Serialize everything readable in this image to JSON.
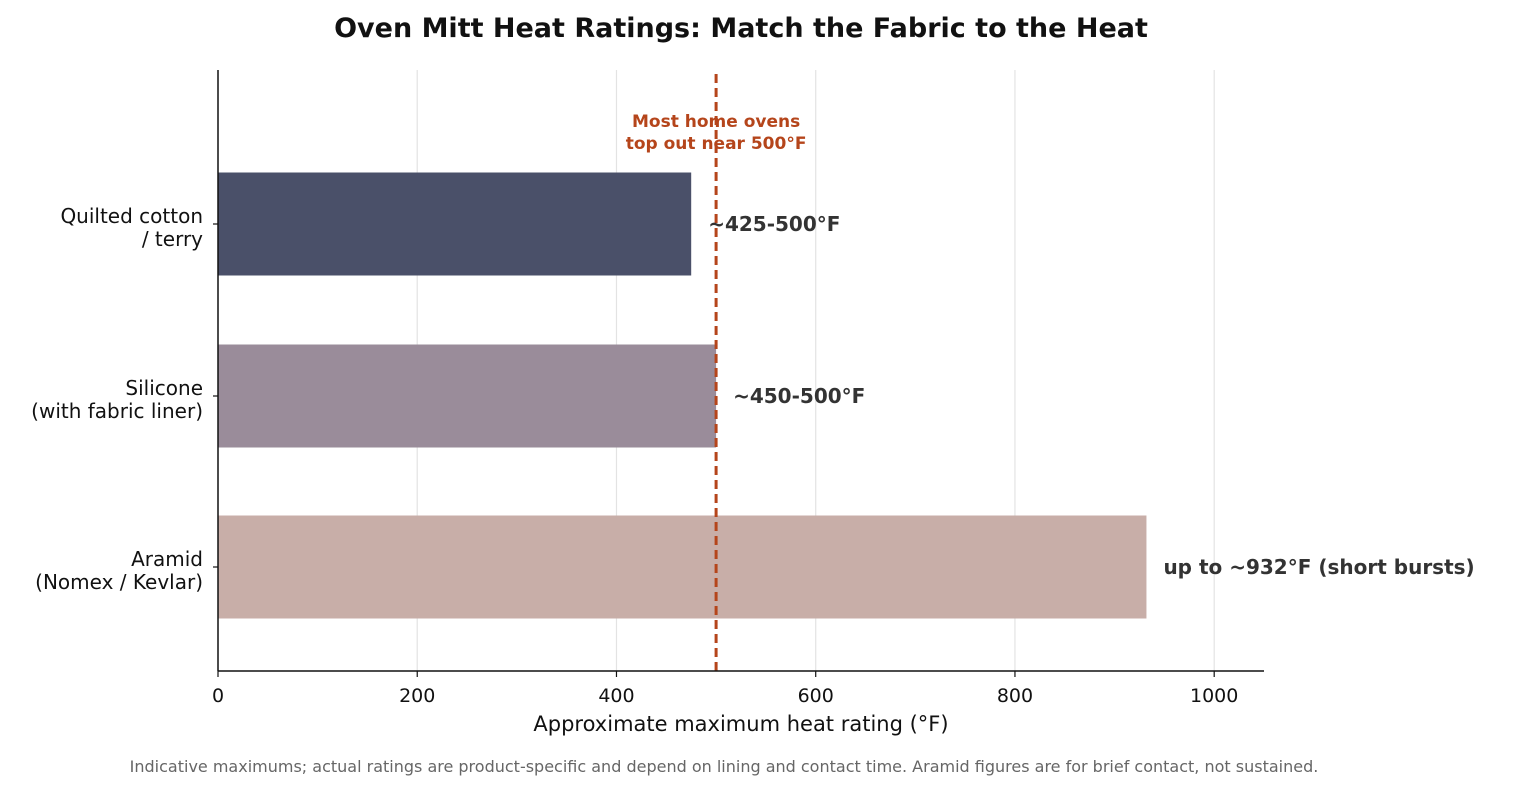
{
  "chart_data": {
    "type": "bar",
    "orientation": "horizontal",
    "title": "Oven Mitt Heat Ratings: Match the Fabric to the Heat",
    "xlabel": "Approximate maximum heat rating (°F)",
    "ylabel": "",
    "xlim": [
      0,
      1050
    ],
    "xticks": [
      0,
      200,
      400,
      600,
      800,
      1000
    ],
    "grid": "vertical",
    "categories": [
      [
        "Quilted cotton",
        "/ terry"
      ],
      [
        "Silicone",
        "(with fabric liner)"
      ],
      [
        "Aramid",
        "(Nomex / Kevlar)"
      ]
    ],
    "values": [
      475,
      500,
      932
    ],
    "value_labels": [
      "~425-500°F",
      "~450-500°F",
      "up to ~932°F (short bursts)"
    ],
    "colors": [
      "#4a5069",
      "#9a8c9a",
      "#c8aea8"
    ],
    "reference_line": {
      "value": 500,
      "label": [
        "Most home ovens",
        "top out near 500°F"
      ],
      "color": "#b5451b",
      "style": "dashed"
    },
    "footnote": "Indicative maximums; actual ratings are product-specific and depend on lining and contact time. Aramid figures are for brief contact, not sustained."
  }
}
